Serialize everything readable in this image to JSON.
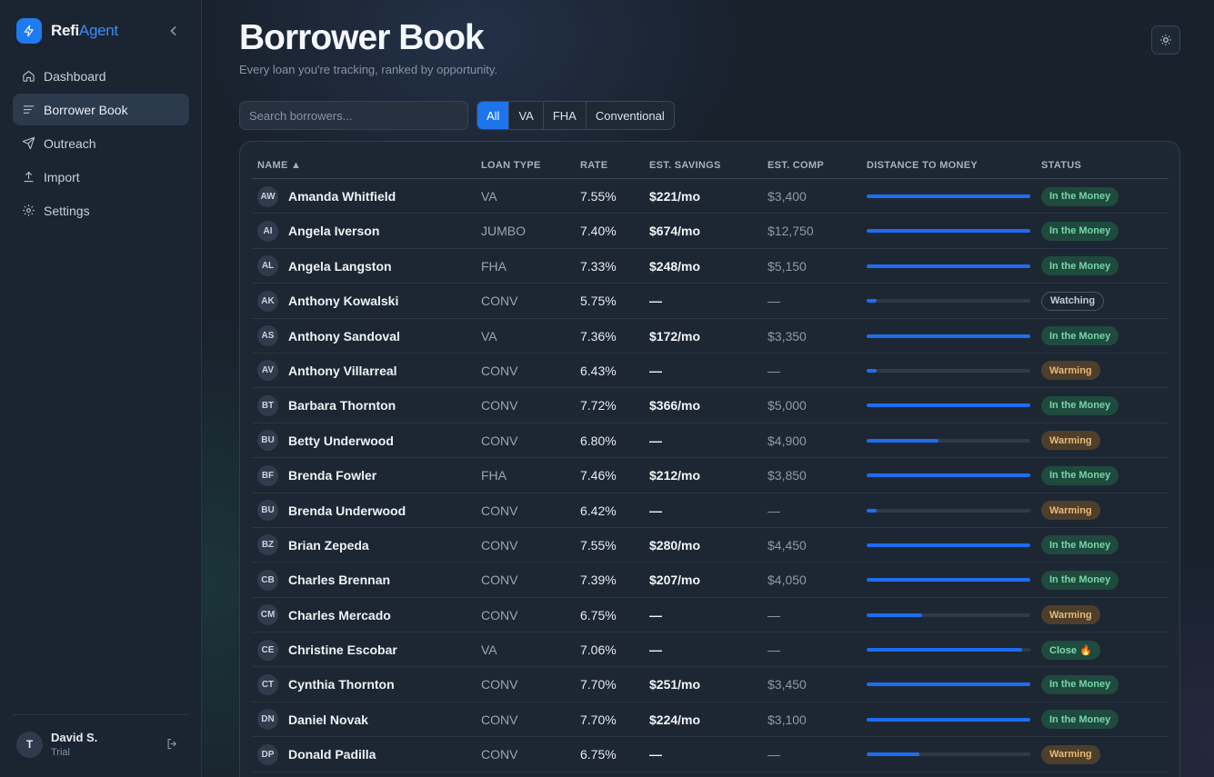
{
  "app": {
    "brand_part1": "Refi",
    "brand_part2": "Agent"
  },
  "sidebar": {
    "items": [
      {
        "label": "Dashboard",
        "icon": "home-icon"
      },
      {
        "label": "Borrower Book",
        "icon": "list-icon"
      },
      {
        "label": "Outreach",
        "icon": "send-icon"
      },
      {
        "label": "Import",
        "icon": "upload-icon"
      },
      {
        "label": "Settings",
        "icon": "gear-icon"
      }
    ],
    "active_index": 1
  },
  "user": {
    "initial": "T",
    "name": "David S.",
    "plan": "Trial"
  },
  "page": {
    "title": "Borrower Book",
    "subtitle": "Every loan you're tracking, ranked by opportunity."
  },
  "search": {
    "placeholder": "Search borrowers..."
  },
  "filters": {
    "options": [
      "All",
      "VA",
      "FHA",
      "Conventional"
    ],
    "selected": "All"
  },
  "colors": {
    "accent": "#1d74ec",
    "status_money": "#74d6a7",
    "status_warming": "#eab877"
  },
  "table": {
    "headers": {
      "name": "NAME ▲",
      "loan_type": "LOAN TYPE",
      "rate": "RATE",
      "savings": "EST. SAVINGS",
      "comp": "EST. COMP",
      "distance": "DISTANCE TO MONEY",
      "status": "STATUS"
    },
    "rows": [
      {
        "initials": "AW",
        "name": "Amanda Whitfield",
        "loan_type": "VA",
        "rate": "7.55%",
        "savings": "$221/mo",
        "comp": "$3,400",
        "distance": 1.0,
        "status": "In the Money"
      },
      {
        "initials": "AI",
        "name": "Angela Iverson",
        "loan_type": "JUMBO",
        "rate": "7.40%",
        "savings": "$674/mo",
        "comp": "$12,750",
        "distance": 1.0,
        "status": "In the Money"
      },
      {
        "initials": "AL",
        "name": "Angela Langston",
        "loan_type": "FHA",
        "rate": "7.33%",
        "savings": "$248/mo",
        "comp": "$5,150",
        "distance": 1.0,
        "status": "In the Money"
      },
      {
        "initials": "AK",
        "name": "Anthony Kowalski",
        "loan_type": "CONV",
        "rate": "5.75%",
        "savings": "—",
        "comp": "—",
        "distance": 0.06,
        "status": "Watching"
      },
      {
        "initials": "AS",
        "name": "Anthony Sandoval",
        "loan_type": "VA",
        "rate": "7.36%",
        "savings": "$172/mo",
        "comp": "$3,350",
        "distance": 1.0,
        "status": "In the Money"
      },
      {
        "initials": "AV",
        "name": "Anthony Villarreal",
        "loan_type": "CONV",
        "rate": "6.43%",
        "savings": "—",
        "comp": "—",
        "distance": 0.06,
        "status": "Warming"
      },
      {
        "initials": "BT",
        "name": "Barbara Thornton",
        "loan_type": "CONV",
        "rate": "7.72%",
        "savings": "$366/mo",
        "comp": "$5,000",
        "distance": 1.0,
        "status": "In the Money"
      },
      {
        "initials": "BU",
        "name": "Betty Underwood",
        "loan_type": "CONV",
        "rate": "6.80%",
        "savings": "—",
        "comp": "$4,900",
        "distance": 0.44,
        "status": "Warming"
      },
      {
        "initials": "BF",
        "name": "Brenda Fowler",
        "loan_type": "FHA",
        "rate": "7.46%",
        "savings": "$212/mo",
        "comp": "$3,850",
        "distance": 1.0,
        "status": "In the Money"
      },
      {
        "initials": "BU",
        "name": "Brenda Underwood",
        "loan_type": "CONV",
        "rate": "6.42%",
        "savings": "—",
        "comp": "—",
        "distance": 0.06,
        "status": "Warming"
      },
      {
        "initials": "BZ",
        "name": "Brian Zepeda",
        "loan_type": "CONV",
        "rate": "7.55%",
        "savings": "$280/mo",
        "comp": "$4,450",
        "distance": 1.0,
        "status": "In the Money"
      },
      {
        "initials": "CB",
        "name": "Charles Brennan",
        "loan_type": "CONV",
        "rate": "7.39%",
        "savings": "$207/mo",
        "comp": "$4,050",
        "distance": 1.0,
        "status": "In the Money"
      },
      {
        "initials": "CM",
        "name": "Charles Mercado",
        "loan_type": "CONV",
        "rate": "6.75%",
        "savings": "—",
        "comp": "—",
        "distance": 0.34,
        "status": "Warming"
      },
      {
        "initials": "CE",
        "name": "Christine Escobar",
        "loan_type": "VA",
        "rate": "7.06%",
        "savings": "—",
        "comp": "—",
        "distance": 0.95,
        "status": "Close 🔥"
      },
      {
        "initials": "CT",
        "name": "Cynthia Thornton",
        "loan_type": "CONV",
        "rate": "7.70%",
        "savings": "$251/mo",
        "comp": "$3,450",
        "distance": 1.0,
        "status": "In the Money"
      },
      {
        "initials": "DN",
        "name": "Daniel Novak",
        "loan_type": "CONV",
        "rate": "7.70%",
        "savings": "$224/mo",
        "comp": "$3,100",
        "distance": 1.0,
        "status": "In the Money"
      },
      {
        "initials": "DP",
        "name": "Donald Padilla",
        "loan_type": "CONV",
        "rate": "6.75%",
        "savings": "—",
        "comp": "—",
        "distance": 0.32,
        "status": "Warming"
      }
    ]
  }
}
